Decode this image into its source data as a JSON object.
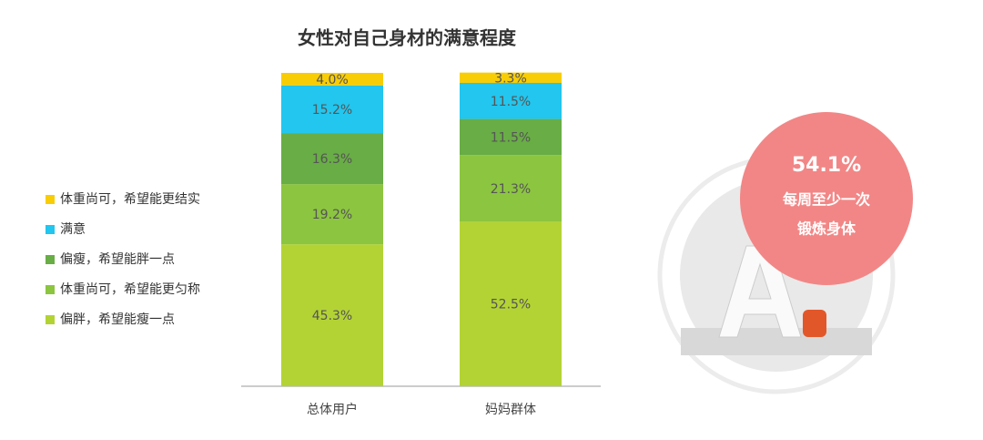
{
  "chart_data": {
    "type": "stacked-bar",
    "title": "女性对自己身材的满意程度",
    "categories": [
      "总体用户",
      "妈妈群体"
    ],
    "series": [
      {
        "name": "偏胖，希望能瘦一点",
        "color": "#b3d335",
        "values": [
          45.3,
          52.5
        ],
        "value_labels": [
          "45.3%",
          "52.5%"
        ]
      },
      {
        "name": "体重尚可，希望能更匀称",
        "color": "#8cc540",
        "values": [
          19.2,
          21.3
        ],
        "value_labels": [
          "19.2%",
          "21.3%"
        ]
      },
      {
        "name": "偏瘦，希望能胖一点",
        "color": "#68ad45",
        "values": [
          16.3,
          11.5
        ],
        "value_labels": [
          "16.3%",
          "11.5%"
        ]
      },
      {
        "name": "满意",
        "color": "#22c6ee",
        "values": [
          15.2,
          11.5
        ],
        "value_labels": [
          "15.2%",
          "11.5%"
        ]
      },
      {
        "name": "体重尚可，希望能更结实",
        "color": "#f8cd06",
        "values": [
          4.0,
          3.3
        ],
        "value_labels": [
          "4.0%",
          "3.3%"
        ]
      }
    ],
    "ylim": [
      0,
      100
    ],
    "legend": "left",
    "annotations": [
      "54.1%",
      "每周至少一次",
      "锻炼身体"
    ]
  }
}
